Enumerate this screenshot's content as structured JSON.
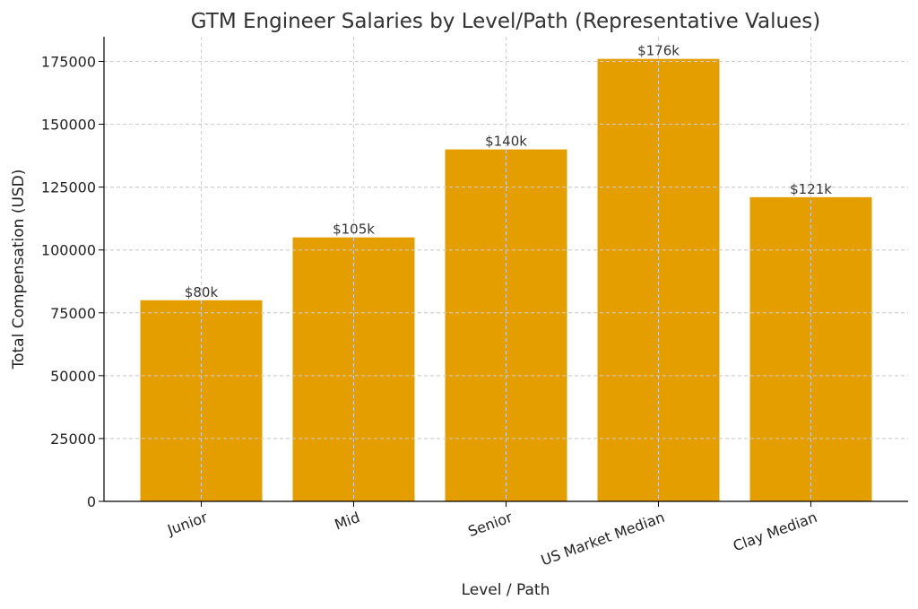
{
  "chart_data": {
    "type": "bar",
    "title": "GTM Engineer Salaries by Level/Path (Representative Values)",
    "xlabel": "Level / Path",
    "ylabel": "Total Compensation (USD)",
    "categories": [
      "Junior",
      "Mid",
      "Senior",
      "US Market Median",
      "Clay Median"
    ],
    "values": [
      80000,
      105000,
      140000,
      176000,
      121000
    ],
    "data_labels": [
      "$80k",
      "$105k",
      "$140k",
      "$176k",
      "$121k"
    ],
    "yticks": [
      0,
      25000,
      50000,
      75000,
      100000,
      125000,
      150000,
      175000
    ],
    "ytick_labels": [
      "0",
      "25000",
      "50000",
      "75000",
      "100000",
      "125000",
      "150000",
      "175000"
    ],
    "ylim": [
      0,
      184800
    ],
    "grid": true,
    "bar_color": "#E59E00"
  }
}
